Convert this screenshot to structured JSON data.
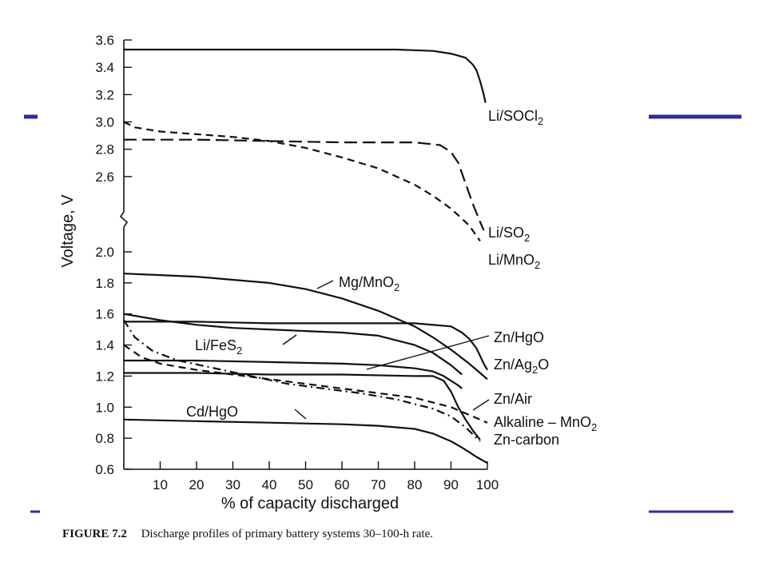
{
  "slide": {
    "accent_color": "#2b2f9e",
    "caption_label": "FIGURE 7.2",
    "caption_text": "Discharge profiles of primary battery systems 30–100-h rate."
  },
  "chart_data": {
    "type": "line",
    "title": "",
    "xlabel": "% of capacity discharged",
    "ylabel": "Voltage, V",
    "xlim": [
      0,
      100
    ],
    "ylim_upper": [
      2.4,
      3.6
    ],
    "ylim_lower": [
      0.6,
      2.0
    ],
    "axis_break": true,
    "x_ticks": [
      "10",
      "20",
      "30",
      "40",
      "50",
      "60",
      "70",
      "80",
      "90",
      "100"
    ],
    "y_ticks": [
      "3.6",
      "3.4",
      "3.2",
      "3.0",
      "2.8",
      "2.6",
      "2.0",
      "1.8",
      "1.6",
      "1.4",
      "1.2",
      "1.0",
      "0.8",
      "0.6"
    ],
    "series": [
      {
        "name": "Li/SOCl₂",
        "style": "solid",
        "x": [
          0,
          20,
          40,
          60,
          75,
          85,
          90,
          94,
          96,
          97,
          98,
          99,
          99.5
        ],
        "y": [
          3.53,
          3.53,
          3.53,
          3.53,
          3.53,
          3.52,
          3.5,
          3.47,
          3.42,
          3.38,
          3.3,
          3.2,
          3.14
        ]
      },
      {
        "name": "Li/SO₂",
        "style": "long-dash",
        "x": [
          0,
          20,
          40,
          60,
          80,
          87,
          90,
          92,
          94,
          96,
          98,
          99
        ],
        "y": [
          2.87,
          2.87,
          2.86,
          2.85,
          2.85,
          2.83,
          2.78,
          2.7,
          2.55,
          2.4,
          2.25,
          2.18
        ]
      },
      {
        "name": "Li/MnO₂",
        "style": "dash",
        "x": [
          0,
          3,
          10,
          20,
          30,
          40,
          50,
          60,
          70,
          80,
          85,
          90,
          95,
          98
        ],
        "y": [
          3.0,
          2.96,
          2.93,
          2.91,
          2.89,
          2.86,
          2.81,
          2.74,
          2.66,
          2.54,
          2.46,
          2.36,
          2.22,
          2.09
        ]
      },
      {
        "name": "Mg/MnO₂",
        "style": "solid",
        "x": [
          0,
          10,
          20,
          30,
          40,
          50,
          60,
          70,
          80,
          85,
          90,
          95,
          98,
          100
        ],
        "y": [
          1.86,
          1.85,
          1.84,
          1.82,
          1.8,
          1.76,
          1.7,
          1.62,
          1.52,
          1.45,
          1.37,
          1.28,
          1.22,
          1.18
        ]
      },
      {
        "name": "Zn/HgO",
        "style": "solid",
        "x": [
          0,
          20,
          40,
          60,
          80,
          90,
          93,
          95,
          97,
          98,
          99,
          100
        ],
        "y": [
          1.55,
          1.55,
          1.54,
          1.54,
          1.54,
          1.52,
          1.48,
          1.44,
          1.38,
          1.33,
          1.28,
          1.24
        ]
      },
      {
        "name": "Li/FeS₂",
        "style": "solid",
        "x": [
          0,
          10,
          20,
          30,
          40,
          50,
          60,
          70,
          80,
          85,
          90,
          93
        ],
        "y": [
          1.6,
          1.56,
          1.53,
          1.51,
          1.5,
          1.49,
          1.48,
          1.46,
          1.4,
          1.35,
          1.27,
          1.21
        ]
      },
      {
        "name": "Zn/Ag₂O",
        "style": "solid",
        "x": [
          0,
          20,
          40,
          60,
          70,
          80,
          85,
          88,
          90,
          92,
          93
        ],
        "y": [
          1.3,
          1.3,
          1.29,
          1.28,
          1.27,
          1.25,
          1.23,
          1.2,
          1.17,
          1.14,
          1.12
        ]
      },
      {
        "name": "Zn/Air",
        "style": "solid",
        "x": [
          0,
          20,
          40,
          60,
          80,
          85,
          88,
          90,
          92,
          94,
          96,
          98
        ],
        "y": [
          1.22,
          1.22,
          1.21,
          1.21,
          1.2,
          1.2,
          1.17,
          1.1,
          1.0,
          0.92,
          0.85,
          0.79
        ]
      },
      {
        "name": "Alkaline – MnO₂",
        "style": "dash",
        "x": [
          0,
          5,
          10,
          20,
          30,
          40,
          50,
          60,
          70,
          80,
          90,
          95,
          100
        ],
        "y": [
          1.4,
          1.32,
          1.28,
          1.24,
          1.21,
          1.18,
          1.15,
          1.12,
          1.09,
          1.06,
          1.0,
          0.95,
          0.9
        ]
      },
      {
        "name": "Zn-carbon",
        "style": "dash-dot",
        "x": [
          0,
          3,
          8,
          15,
          25,
          35,
          45,
          55,
          65,
          75,
          85,
          90,
          94,
          98
        ],
        "y": [
          1.56,
          1.45,
          1.36,
          1.3,
          1.25,
          1.2,
          1.15,
          1.12,
          1.09,
          1.05,
          0.99,
          0.94,
          0.87,
          0.78
        ]
      },
      {
        "name": "Cd/HgO",
        "style": "solid",
        "x": [
          0,
          20,
          40,
          60,
          70,
          80,
          85,
          90,
          93,
          95,
          97,
          100
        ],
        "y": [
          0.92,
          0.91,
          0.9,
          0.89,
          0.88,
          0.86,
          0.83,
          0.78,
          0.74,
          0.71,
          0.68,
          0.64
        ]
      }
    ],
    "labels": [
      {
        "series": "Li/SOCl₂",
        "main": "Li/SOCl",
        "sub": "2",
        "tail": ""
      },
      {
        "series": "Li/SO₂",
        "main": "Li/SO",
        "sub": "2",
        "tail": ""
      },
      {
        "series": "Li/MnO₂",
        "main": "Li/MnO",
        "sub": "2",
        "tail": ""
      },
      {
        "series": "Mg/MnO₂",
        "main": "Mg/MnO",
        "sub": "2",
        "tail": ""
      },
      {
        "series": "Li/FeS₂",
        "main": "Li/FeS",
        "sub": "2",
        "tail": ""
      },
      {
        "series": "Zn/HgO",
        "main": "Zn/HgO",
        "sub": "",
        "tail": ""
      },
      {
        "series": "Zn/Ag₂O",
        "main": "Zn/Ag",
        "sub": "2",
        "tail": "O"
      },
      {
        "series": "Zn/Air",
        "main": "Zn/Air",
        "sub": "",
        "tail": ""
      },
      {
        "series": "Alkaline – MnO₂",
        "main": "Alkaline – MnO",
        "sub": "2",
        "tail": ""
      },
      {
        "series": "Zn-carbon",
        "main": "Zn-carbon",
        "sub": "",
        "tail": ""
      },
      {
        "series": "Cd/HgO",
        "main": "Cd/HgO",
        "sub": "",
        "tail": ""
      }
    ]
  }
}
